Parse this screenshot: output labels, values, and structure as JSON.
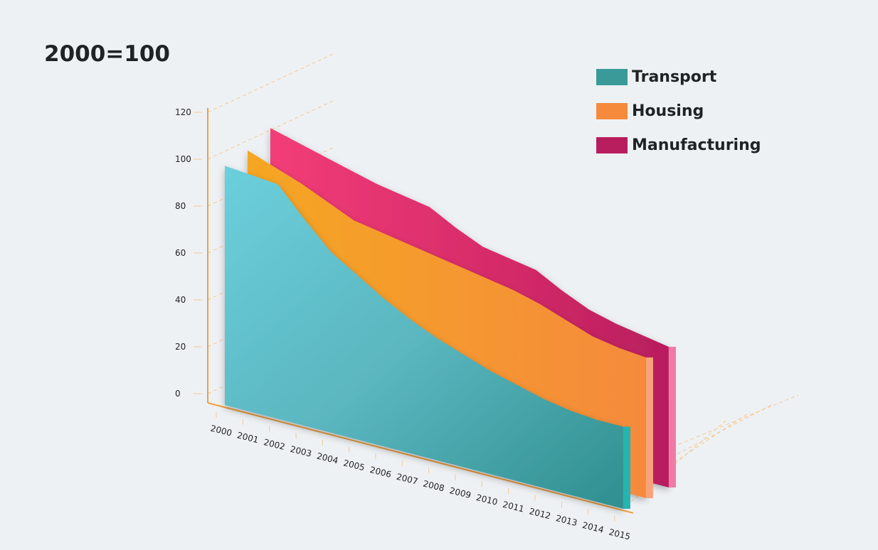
{
  "title": "2000=100",
  "colors": {
    "axis": "#f0a040",
    "grid": "#f5c890",
    "transport": "#3a9a9a",
    "housing": "#f58a3c",
    "manufacturing": "#b81e5e"
  },
  "chart_data": {
    "type": "area",
    "subtype": "3d-stacked-ribbon",
    "x": [
      "2000",
      "2001",
      "2002",
      "2003",
      "2004",
      "2005",
      "2006",
      "2007",
      "2008",
      "2009",
      "2010",
      "2011",
      "2012",
      "2013",
      "2014",
      "2015"
    ],
    "ylim": [
      0,
      120
    ],
    "yticks": [
      0,
      20,
      40,
      60,
      80,
      100,
      120
    ],
    "legend_position": "top-right",
    "grid": true,
    "series": [
      {
        "name": "Manufacturing",
        "color": "#b81e5e",
        "values": [
          109,
          106,
          103,
          100,
          97,
          95,
          93,
          87,
          82,
          80,
          78,
          72,
          67,
          64,
          62,
          60
        ]
      },
      {
        "name": "Housing",
        "color": "#f58a3c",
        "values": [
          104,
          100,
          96,
          91,
          86,
          84,
          82,
          80,
          78,
          76,
          74,
          71,
          67,
          63,
          61,
          60
        ]
      },
      {
        "name": "Transport",
        "color": "#3a9a9a",
        "values": [
          102,
          101,
          100,
          88,
          77,
          70,
          63,
          57,
          52,
          48,
          44,
          41,
          38,
          36,
          35,
          35
        ]
      }
    ]
  }
}
